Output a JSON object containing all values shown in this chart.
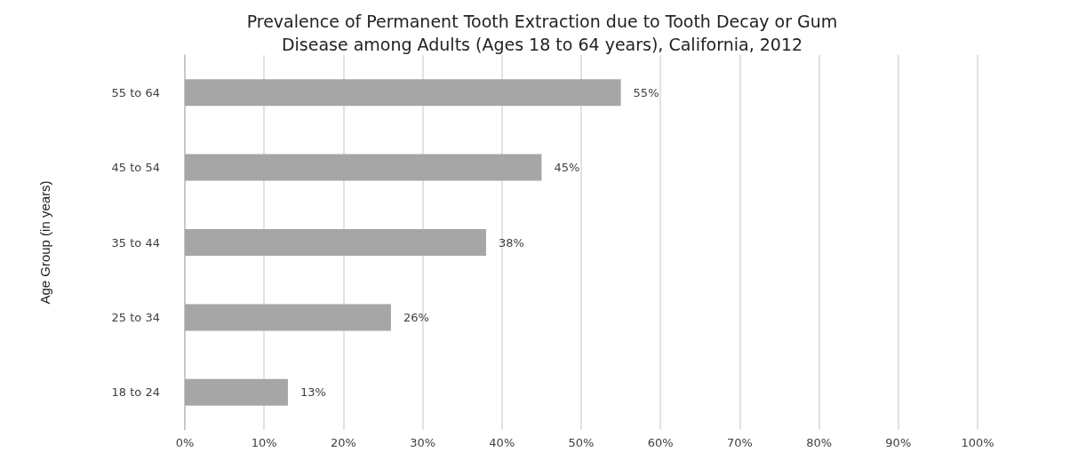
{
  "chart_data": {
    "type": "bar",
    "orientation": "horizontal",
    "title": "Prevalence of Permanent Tooth Extraction due to Tooth Decay or Gum\nDisease among Adults (Ages 18 to 64 years), California, 2012",
    "ylabel": "Age Group (in years)",
    "categories": [
      "55 to 64",
      "45 to 54",
      "35 to 44",
      "25 to 34",
      "18 to 24"
    ],
    "values": [
      55,
      45,
      38,
      26,
      13
    ],
    "value_labels": [
      "55%",
      "45%",
      "38%",
      "26%",
      "13%"
    ],
    "color": "#a6a6a6",
    "xlim": [
      0,
      100
    ],
    "xticks": [
      {
        "value": 0,
        "label": "0%"
      },
      {
        "value": 10,
        "label": "10%"
      },
      {
        "value": 20,
        "label": "20%"
      },
      {
        "value": 30,
        "label": "30%"
      },
      {
        "value": 40,
        "label": "40%"
      },
      {
        "value": 50,
        "label": "50%"
      },
      {
        "value": 60,
        "label": "60%"
      },
      {
        "value": 70,
        "label": "70%"
      },
      {
        "value": 80,
        "label": "80%"
      },
      {
        "value": 90,
        "label": "90%"
      },
      {
        "value": 100,
        "label": "100%"
      }
    ],
    "grid": "x"
  }
}
